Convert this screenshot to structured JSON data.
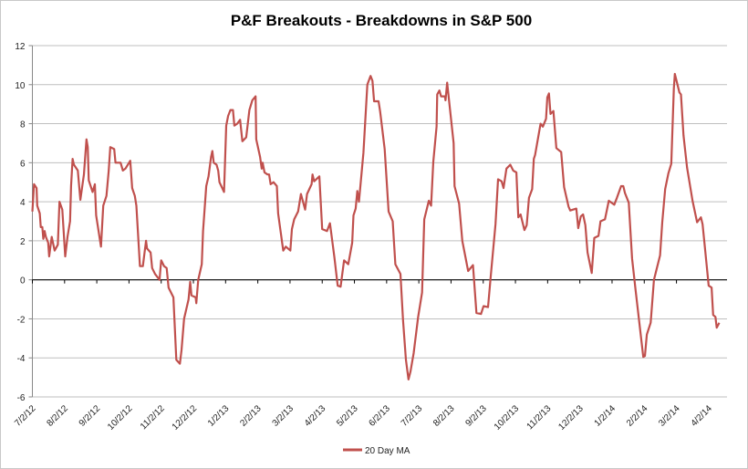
{
  "chart_data": {
    "type": "line",
    "title": "P&F Breakouts - Breakdowns in S&P 500",
    "xlabel": "",
    "ylabel": "",
    "x_unit": "months since 7/2/12",
    "xlim": [
      0,
      21.57
    ],
    "ylim": [
      -6,
      12
    ],
    "yticks": [
      -6,
      -4,
      -2,
      0,
      2,
      4,
      6,
      8,
      10,
      12
    ],
    "xtick_labels": [
      "7/2/12",
      "8/2/12",
      "9/2/12",
      "10/2/12",
      "11/2/12",
      "12/2/12",
      "1/2/13",
      "2/2/13",
      "3/2/13",
      "4/2/13",
      "5/2/13",
      "6/2/13",
      "7/2/13",
      "8/2/13",
      "9/2/13",
      "10/2/13",
      "11/2/13",
      "12/2/13",
      "1/2/14",
      "2/2/14",
      "3/2/14",
      "4/2/14"
    ],
    "grid": true,
    "legend_position": "bottom",
    "colors": {
      "line": "#c0504d",
      "grid": "#bfbfbf",
      "axis": "#000000"
    },
    "series": [
      {
        "name": "20 Day MA",
        "points": [
          [
            0,
            3.5
          ],
          [
            0.05,
            4.9
          ],
          [
            0.13,
            4.7
          ],
          [
            0.15,
            3.8
          ],
          [
            0.23,
            3.4
          ],
          [
            0.26,
            2.7
          ],
          [
            0.31,
            2.7
          ],
          [
            0.34,
            2.1
          ],
          [
            0.38,
            2.5
          ],
          [
            0.42,
            2.2
          ],
          [
            0.49,
            1.9
          ],
          [
            0.52,
            1.2
          ],
          [
            0.6,
            2.2
          ],
          [
            0.69,
            1.5
          ],
          [
            0.79,
            1.8
          ],
          [
            0.84,
            4.0
          ],
          [
            0.93,
            3.6
          ],
          [
            1.02,
            1.2
          ],
          [
            1.09,
            2.2
          ],
          [
            1.17,
            3.0
          ],
          [
            1.2,
            4.8
          ],
          [
            1.25,
            6.2
          ],
          [
            1.29,
            5.9
          ],
          [
            1.41,
            5.6
          ],
          [
            1.49,
            4.1
          ],
          [
            1.6,
            5.4
          ],
          [
            1.68,
            7.2
          ],
          [
            1.72,
            6.8
          ],
          [
            1.75,
            5.1
          ],
          [
            1.87,
            4.5
          ],
          [
            1.94,
            4.9
          ],
          [
            1.98,
            3.3
          ],
          [
            2.13,
            1.7
          ],
          [
            2.2,
            3.8
          ],
          [
            2.3,
            4.3
          ],
          [
            2.37,
            5.6
          ],
          [
            2.42,
            6.8
          ],
          [
            2.54,
            6.7
          ],
          [
            2.58,
            6.0
          ],
          [
            2.74,
            6.0
          ],
          [
            2.81,
            5.6
          ],
          [
            2.89,
            5.7
          ],
          [
            3.04,
            6.1
          ],
          [
            3.1,
            4.7
          ],
          [
            3.18,
            4.3
          ],
          [
            3.23,
            3.8
          ],
          [
            3.34,
            0.7
          ],
          [
            3.43,
            0.7
          ],
          [
            3.53,
            2.0
          ],
          [
            3.56,
            1.6
          ],
          [
            3.67,
            1.4
          ],
          [
            3.72,
            0.6
          ],
          [
            3.81,
            0.3
          ],
          [
            3.95,
            0.0
          ],
          [
            4.0,
            1.0
          ],
          [
            4.09,
            0.7
          ],
          [
            4.17,
            0.6
          ],
          [
            4.23,
            -0.4
          ],
          [
            4.38,
            -0.9
          ],
          [
            4.47,
            -4.1
          ],
          [
            4.58,
            -4.3
          ],
          [
            4.63,
            -3.6
          ],
          [
            4.71,
            -2.0
          ],
          [
            4.85,
            -1.0
          ],
          [
            4.9,
            -0.1
          ],
          [
            4.94,
            -0.8
          ],
          [
            5.07,
            -0.9
          ],
          [
            5.09,
            -1.2
          ],
          [
            5.15,
            0.0
          ],
          [
            5.26,
            0.8
          ],
          [
            5.3,
            2.5
          ],
          [
            5.4,
            4.8
          ],
          [
            5.47,
            5.3
          ],
          [
            5.55,
            6.3
          ],
          [
            5.59,
            6.6
          ],
          [
            5.63,
            6.0
          ],
          [
            5.72,
            5.9
          ],
          [
            5.77,
            5.6
          ],
          [
            5.81,
            5.0
          ],
          [
            5.95,
            4.5
          ],
          [
            6.02,
            7.9
          ],
          [
            6.08,
            8.4
          ],
          [
            6.15,
            8.7
          ],
          [
            6.23,
            8.7
          ],
          [
            6.27,
            7.9
          ],
          [
            6.36,
            8.0
          ],
          [
            6.45,
            8.2
          ],
          [
            6.52,
            7.1
          ],
          [
            6.64,
            7.3
          ],
          [
            6.74,
            8.7
          ],
          [
            6.83,
            9.2
          ],
          [
            6.93,
            9.4
          ],
          [
            6.95,
            7.2
          ],
          [
            7.07,
            6.3
          ],
          [
            7.12,
            5.7
          ],
          [
            7.15,
            6.0
          ],
          [
            7.21,
            5.5
          ],
          [
            7.3,
            5.4
          ],
          [
            7.35,
            5.4
          ],
          [
            7.4,
            4.9
          ],
          [
            7.49,
            5.0
          ],
          [
            7.59,
            4.8
          ],
          [
            7.63,
            3.4
          ],
          [
            7.79,
            1.5
          ],
          [
            7.87,
            1.7
          ],
          [
            8.01,
            1.5
          ],
          [
            8.06,
            2.6
          ],
          [
            8.13,
            3.1
          ],
          [
            8.25,
            3.5
          ],
          [
            8.34,
            4.4
          ],
          [
            8.47,
            3.6
          ],
          [
            8.53,
            4.4
          ],
          [
            8.67,
            4.9
          ],
          [
            8.7,
            5.4
          ],
          [
            8.75,
            5.05
          ],
          [
            8.91,
            5.3
          ],
          [
            9.0,
            2.6
          ],
          [
            9.15,
            2.5
          ],
          [
            9.24,
            2.9
          ],
          [
            9.38,
            1.15
          ],
          [
            9.48,
            -0.3
          ],
          [
            9.57,
            -0.35
          ],
          [
            9.68,
            1.0
          ],
          [
            9.81,
            0.8
          ],
          [
            9.93,
            1.9
          ],
          [
            9.97,
            3.3
          ],
          [
            10.04,
            3.65
          ],
          [
            10.09,
            4.55
          ],
          [
            10.14,
            4.0
          ],
          [
            10.28,
            6.5
          ],
          [
            10.4,
            10.0
          ],
          [
            10.5,
            10.45
          ],
          [
            10.56,
            10.2
          ],
          [
            10.61,
            9.15
          ],
          [
            10.75,
            9.15
          ],
          [
            10.8,
            8.6
          ],
          [
            10.94,
            6.7
          ],
          [
            11.06,
            3.5
          ],
          [
            11.19,
            3.0
          ],
          [
            11.27,
            0.8
          ],
          [
            11.43,
            0.3
          ],
          [
            11.51,
            -2.05
          ],
          [
            11.6,
            -4.1
          ],
          [
            11.68,
            -5.1
          ],
          [
            11.74,
            -4.7
          ],
          [
            11.84,
            -3.75
          ],
          [
            11.98,
            -1.9
          ],
          [
            12.1,
            -0.65
          ],
          [
            12.17,
            3.1
          ],
          [
            12.31,
            4.05
          ],
          [
            12.38,
            3.8
          ],
          [
            12.45,
            6.05
          ],
          [
            12.55,
            7.85
          ],
          [
            12.57,
            9.5
          ],
          [
            12.64,
            9.7
          ],
          [
            12.69,
            9.4
          ],
          [
            12.81,
            9.4
          ],
          [
            12.83,
            9.2
          ],
          [
            12.88,
            10.1
          ],
          [
            12.97,
            8.7
          ],
          [
            13.08,
            7.0
          ],
          [
            13.11,
            4.8
          ],
          [
            13.25,
            3.9
          ],
          [
            13.35,
            2.0
          ],
          [
            13.53,
            0.45
          ],
          [
            13.68,
            0.75
          ],
          [
            13.79,
            -1.7
          ],
          [
            13.93,
            -1.75
          ],
          [
            14.01,
            -1.35
          ],
          [
            14.15,
            -1.4
          ],
          [
            14.24,
            0.3
          ],
          [
            14.38,
            2.85
          ],
          [
            14.46,
            5.15
          ],
          [
            14.57,
            5.05
          ],
          [
            14.63,
            4.7
          ],
          [
            14.72,
            5.7
          ],
          [
            14.84,
            5.9
          ],
          [
            14.93,
            5.6
          ],
          [
            15.03,
            5.5
          ],
          [
            15.09,
            3.2
          ],
          [
            15.16,
            3.35
          ],
          [
            15.28,
            2.55
          ],
          [
            15.35,
            2.8
          ],
          [
            15.42,
            4.2
          ],
          [
            15.52,
            4.65
          ],
          [
            15.57,
            6.2
          ],
          [
            15.61,
            6.4
          ],
          [
            15.78,
            8.0
          ],
          [
            15.85,
            7.85
          ],
          [
            15.95,
            8.25
          ],
          [
            15.99,
            9.35
          ],
          [
            16.04,
            9.55
          ],
          [
            16.09,
            8.5
          ],
          [
            16.18,
            8.65
          ],
          [
            16.27,
            6.75
          ],
          [
            16.42,
            6.55
          ],
          [
            16.51,
            4.75
          ],
          [
            16.65,
            3.75
          ],
          [
            16.7,
            3.55
          ],
          [
            16.89,
            3.65
          ],
          [
            16.95,
            2.65
          ],
          [
            17.03,
            3.25
          ],
          [
            17.1,
            3.35
          ],
          [
            17.17,
            2.8
          ],
          [
            17.24,
            1.4
          ],
          [
            17.37,
            0.35
          ],
          [
            17.45,
            2.15
          ],
          [
            17.58,
            2.25
          ],
          [
            17.64,
            3.0
          ],
          [
            17.78,
            3.1
          ],
          [
            17.9,
            4.05
          ],
          [
            18.07,
            3.85
          ],
          [
            18.15,
            4.2
          ],
          [
            18.28,
            4.8
          ],
          [
            18.35,
            4.8
          ],
          [
            18.4,
            4.45
          ],
          [
            18.52,
            3.95
          ],
          [
            18.62,
            1.1
          ],
          [
            18.73,
            -0.5
          ],
          [
            18.97,
            -3.95
          ],
          [
            19.02,
            -3.9
          ],
          [
            19.08,
            -2.8
          ],
          [
            19.2,
            -2.2
          ],
          [
            19.3,
            0.0
          ],
          [
            19.49,
            1.25
          ],
          [
            19.56,
            2.95
          ],
          [
            19.65,
            4.65
          ],
          [
            19.75,
            5.45
          ],
          [
            19.84,
            5.95
          ],
          [
            19.92,
            9.8
          ],
          [
            19.95,
            10.55
          ],
          [
            20.09,
            9.6
          ],
          [
            20.14,
            9.5
          ],
          [
            20.22,
            7.4
          ],
          [
            20.33,
            5.75
          ],
          [
            20.5,
            4.05
          ],
          [
            20.64,
            2.95
          ],
          [
            20.76,
            3.2
          ],
          [
            20.81,
            2.85
          ],
          [
            20.9,
            1.4
          ],
          [
            21.0,
            -0.3
          ],
          [
            21.09,
            -0.4
          ],
          [
            21.14,
            -1.8
          ],
          [
            21.21,
            -1.9
          ],
          [
            21.25,
            -2.45
          ],
          [
            21.33,
            -2.2
          ]
        ]
      }
    ]
  }
}
